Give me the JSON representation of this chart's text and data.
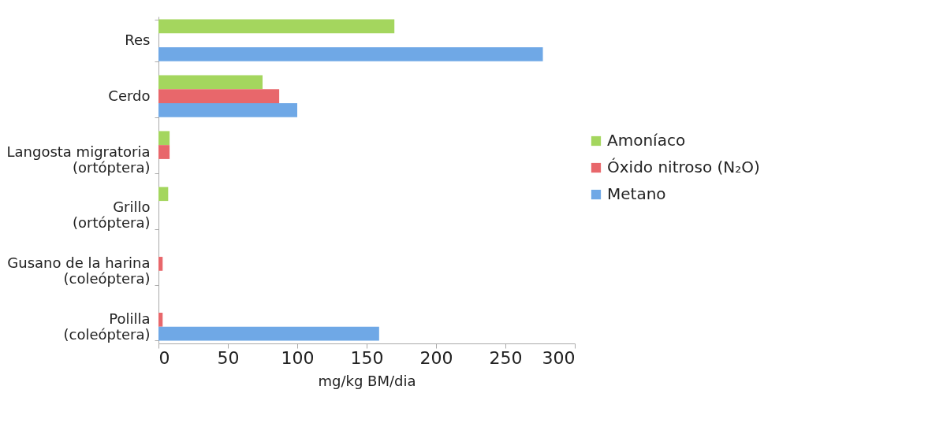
{
  "chart_data": {
    "type": "bar",
    "orientation": "horizontal",
    "xlabel": "mg/kg BM/dia",
    "categories": [
      "Res",
      "Cerdo",
      "Langosta migratoria\n(ortóptera)",
      "Grillo\n(ortóptera)",
      "Gusano de la harina\n(coleóptera)",
      "Polilla\n(coleóptera)"
    ],
    "series": [
      {
        "name": "Amoníaco",
        "color": "#a4d65e",
        "values": [
          170,
          75,
          8,
          7,
          null,
          null
        ]
      },
      {
        "name": "Óxido nitroso (N₂O)",
        "color": "#e8676b",
        "values": [
          null,
          87,
          8,
          null,
          3,
          3
        ]
      },
      {
        "name": "Metano",
        "color": "#6fa8e6",
        "values": [
          277,
          100,
          null,
          null,
          null,
          159
        ]
      }
    ],
    "xlim": [
      0,
      300
    ],
    "xticks": [
      0,
      50,
      100,
      150,
      200,
      250,
      300
    ],
    "legend": "right",
    "grid": false
  }
}
